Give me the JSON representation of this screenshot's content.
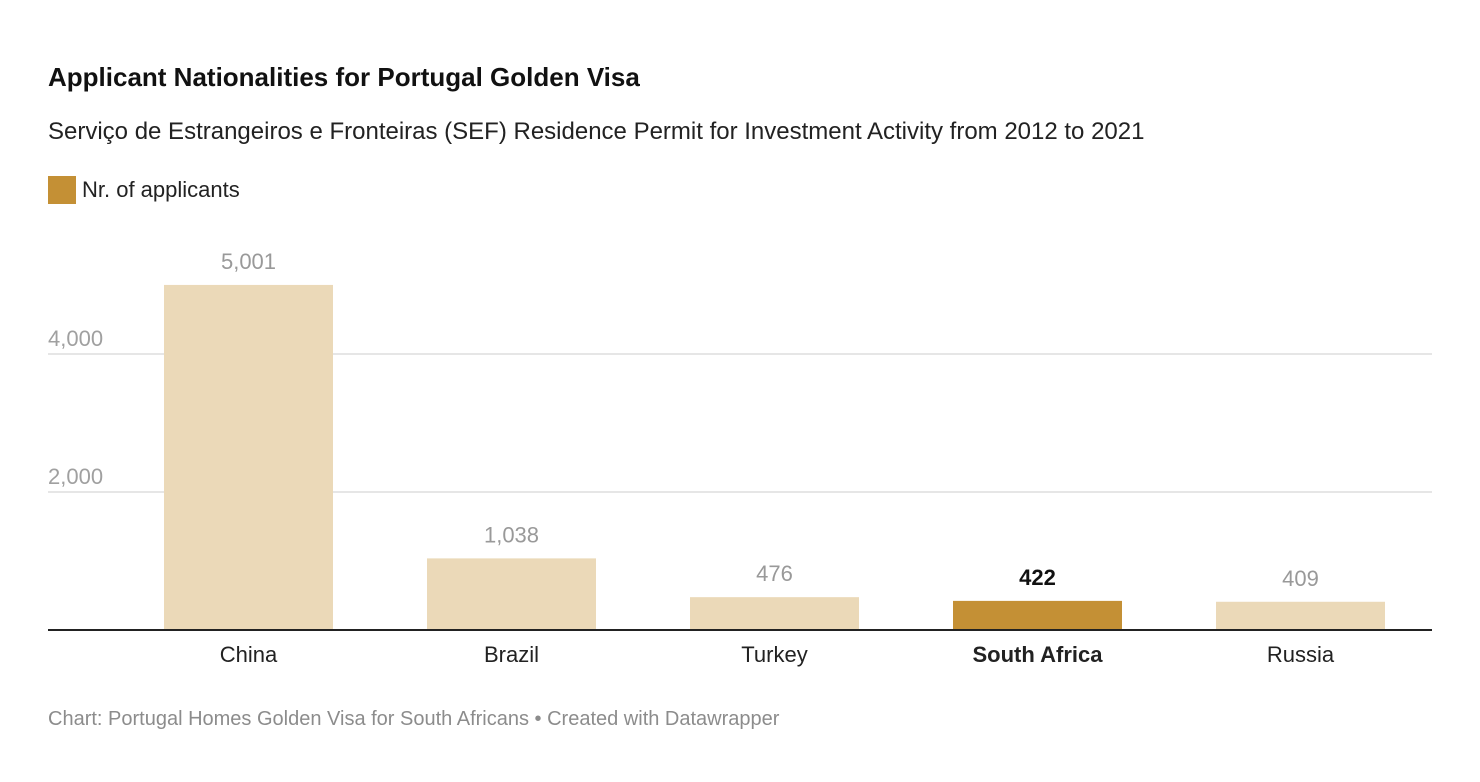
{
  "chart_data": {
    "type": "bar",
    "title": "Applicant Nationalities for Portugal Golden Visa",
    "subtitle": "Serviço de Estrangeiros e Fronteiras (SEF) Residence Permit for Investment Activity from 2012 to 2021",
    "legend": [
      {
        "name": "Nr. of applicants",
        "color": "#c49035"
      }
    ],
    "categories": [
      "China",
      "Brazil",
      "Turkey",
      "South Africa",
      "Russia"
    ],
    "series": [
      {
        "name": "Nr. of applicants",
        "values": [
          5001,
          1038,
          476,
          422,
          409
        ]
      }
    ],
    "value_labels": [
      "5,001",
      "1,038",
      "476",
      "422",
      "409"
    ],
    "highlight": "South Africa",
    "y_ticks": [
      {
        "value": 2000,
        "label": "2,000"
      },
      {
        "value": 4000,
        "label": "4,000"
      }
    ],
    "ylim": [
      0,
      5001
    ],
    "grid": true,
    "colors": {
      "bar": "#ebd9b8",
      "highlight": "#c49035",
      "label": "#999999",
      "grid": "#dddddd"
    },
    "source": "Chart: Portugal Homes Golden Visa for South Africans • Created with Datawrapper"
  }
}
